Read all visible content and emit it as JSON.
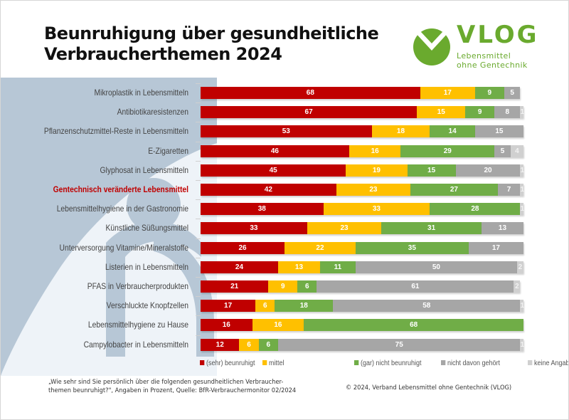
{
  "header": {
    "title_line1": "Beunruhigung über gesundheitliche",
    "title_line2": "Verbraucherthemen 2024"
  },
  "logo": {
    "wordmark": "VLOG",
    "subtitle_line1": "Lebensmittel",
    "subtitle_line2": "ohne Gentechnik",
    "color": "#6aaa2e"
  },
  "chart_data": {
    "type": "bar",
    "orientation": "horizontal",
    "stacked": true,
    "title": "Beunruhigung über gesundheitliche Verbraucherthemen 2024",
    "xlabel": "",
    "ylabel": "",
    "unit": "Prozent",
    "xlim": [
      0,
      100
    ],
    "grid": false,
    "legend_position": "bottom",
    "highlighted_category": "Gentechnisch veränderte Lebensmittel",
    "categories": [
      "Mikroplastik in Lebensmitteln",
      "Antibiotikaresistenzen",
      "Pflanzenschutzmittel-Reste in Lebensmitteln",
      "E-Zigaretten",
      "Glyphosat in Lebensmitteln",
      "Gentechnisch veränderte Lebensmittel",
      "Lebensmittelhygiene in der Gastronomie",
      "Künstliche Süßungsmittel",
      "Unterversorgung Vitamine/Mineralstoffe",
      "Listerien in Lebensmitteln",
      "PFAS in Verbraucherprodukten",
      "Verschluckte Knopfzellen",
      "Lebensmittelhygiene zu Hause",
      "Campylobacter in Lebensmitteln"
    ],
    "series": [
      {
        "name": "(sehr) beunruhigt",
        "color": "#c00000",
        "values": [
          68,
          67,
          53,
          46,
          45,
          42,
          38,
          33,
          26,
          24,
          21,
          17,
          16,
          12
        ]
      },
      {
        "name": "mittel",
        "color": "#ffc000",
        "values": [
          17,
          15,
          18,
          16,
          19,
          23,
          33,
          23,
          22,
          13,
          9,
          6,
          16,
          6
        ]
      },
      {
        "name": "(gar) nicht beunruhigt",
        "color": "#70ad47",
        "values": [
          9,
          9,
          14,
          29,
          15,
          27,
          28,
          31,
          35,
          11,
          6,
          18,
          68,
          6
        ]
      },
      {
        "name": "nicht davon gehört",
        "color": "#a6a6a6",
        "values": [
          5,
          8,
          15,
          5,
          20,
          7,
          null,
          13,
          17,
          50,
          61,
          58,
          null,
          75
        ]
      },
      {
        "name": "keine Angabe",
        "color": "#d0d0d0",
        "values": [
          null,
          1,
          null,
          4,
          1,
          1,
          1,
          null,
          null,
          2,
          2,
          1,
          null,
          1
        ]
      }
    ]
  },
  "footer": {
    "question_line1": "„Wie sehr sind Sie persönlich über die folgenden gesundheitlichen Verbraucher-",
    "question_line2": "themen beunruhigt?\", Angaben in Prozent, Quelle: BfR-Verbrauchermonitor 02/2024",
    "copyright": "© 2024, Verband Lebensmittel ohne Gentechnik (VLOG)"
  }
}
